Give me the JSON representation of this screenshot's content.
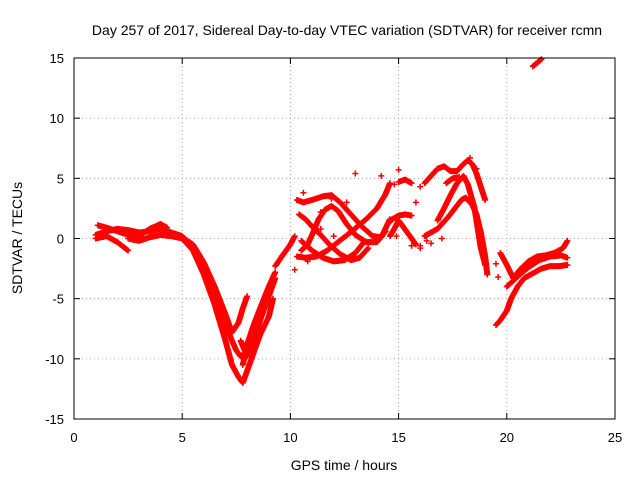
{
  "chart_data": {
    "type": "scatter",
    "title": "Day 257 of 2017, Sidereal Day-to-day VTEC variation (SDTVAR) for receiver rcmn",
    "xlabel": "GPS time / hours",
    "ylabel": "SDTVAR / TECUs",
    "xlim": [
      0,
      25
    ],
    "ylim": [
      -15,
      15
    ],
    "xticks": [
      0,
      5,
      10,
      15,
      20,
      25
    ],
    "yticks": [
      -15,
      -10,
      -5,
      0,
      5,
      10,
      15
    ],
    "grid": true,
    "marker": "+",
    "series_color": "#ff0000",
    "tracks": [
      [
        [
          1.0,
          0.3
        ],
        [
          1.5,
          0.6
        ],
        [
          2.0,
          0.8
        ],
        [
          2.5,
          0.7
        ],
        [
          3.0,
          0.5
        ],
        [
          3.5,
          0.6
        ],
        [
          4.0,
          0.8
        ],
        [
          4.5,
          0.5
        ],
        [
          5.0,
          0.2
        ],
        [
          5.5,
          -0.8
        ],
        [
          6.0,
          -2.5
        ],
        [
          6.5,
          -4.8
        ],
        [
          7.0,
          -7.2
        ],
        [
          7.3,
          -8.5
        ],
        [
          7.5,
          -9.3
        ],
        [
          7.7,
          -9.8
        ],
        [
          7.9,
          -9.5
        ]
      ],
      [
        [
          1.0,
          0.0
        ],
        [
          1.5,
          0.2
        ],
        [
          2.0,
          -0.3
        ],
        [
          2.5,
          -1.0
        ]
      ],
      [
        [
          1.1,
          1.1
        ],
        [
          1.5,
          0.9
        ],
        [
          2.0,
          0.6
        ],
        [
          2.5,
          0.3
        ],
        [
          3.0,
          0.2
        ],
        [
          3.5,
          0.8
        ],
        [
          4.0,
          1.2
        ],
        [
          4.3,
          0.9
        ]
      ],
      [
        [
          2.5,
          0.0
        ],
        [
          3.0,
          -0.2
        ],
        [
          3.5,
          0.1
        ],
        [
          4.0,
          0.3
        ],
        [
          4.5,
          0.2
        ],
        [
          5.0,
          0.0
        ],
        [
          5.5,
          -1.0
        ],
        [
          6.0,
          -3.0
        ],
        [
          6.5,
          -5.5
        ],
        [
          7.0,
          -8.5
        ],
        [
          7.3,
          -10.5
        ],
        [
          7.6,
          -11.5
        ],
        [
          7.8,
          -12.0
        ],
        [
          8.0,
          -11.0
        ],
        [
          8.3,
          -9.5
        ],
        [
          8.6,
          -8.0
        ],
        [
          9.0,
          -6.5
        ],
        [
          9.2,
          -5.0
        ]
      ],
      [
        [
          4.5,
          0.4
        ],
        [
          5.0,
          0.1
        ],
        [
          5.5,
          -0.5
        ],
        [
          6.0,
          -2.0
        ],
        [
          6.5,
          -4.0
        ],
        [
          7.0,
          -6.3
        ],
        [
          7.3,
          -7.8
        ],
        [
          7.6,
          -7.0
        ],
        [
          7.8,
          -5.8
        ],
        [
          8.0,
          -4.8
        ]
      ],
      [
        [
          7.8,
          -10.5
        ],
        [
          8.0,
          -8.8
        ],
        [
          8.3,
          -7.2
        ],
        [
          8.6,
          -5.8
        ],
        [
          9.0,
          -4.0
        ],
        [
          9.3,
          -2.8
        ]
      ],
      [
        [
          7.7,
          -8.5
        ],
        [
          8.0,
          -9.8
        ],
        [
          8.3,
          -8.5
        ],
        [
          8.6,
          -6.8
        ],
        [
          9.0,
          -4.8
        ],
        [
          9.3,
          -3.3
        ]
      ],
      [
        [
          9.3,
          -2.3
        ],
        [
          9.6,
          -1.5
        ],
        [
          9.8,
          -1.0
        ],
        [
          10.0,
          -0.5
        ],
        [
          10.2,
          0.2
        ]
      ],
      [
        [
          10.5,
          -1.0
        ],
        [
          10.8,
          -0.5
        ],
        [
          11.0,
          0.3
        ],
        [
          11.3,
          1.6
        ],
        [
          11.6,
          2.4
        ],
        [
          11.9,
          2.7
        ],
        [
          12.2,
          2.3
        ],
        [
          12.6,
          1.2
        ],
        [
          13.0,
          0.3
        ],
        [
          13.5,
          -0.3
        ],
        [
          14.0,
          -0.3
        ],
        [
          14.4,
          0.6
        ]
      ],
      [
        [
          10.3,
          -1.5
        ],
        [
          10.7,
          -1.6
        ],
        [
          11.2,
          -1.5
        ],
        [
          11.7,
          -1.0
        ],
        [
          12.2,
          -0.3
        ],
        [
          12.7,
          0.4
        ],
        [
          13.1,
          1.0
        ],
        [
          13.5,
          1.6
        ],
        [
          14.0,
          2.5
        ],
        [
          14.4,
          3.7
        ],
        [
          14.6,
          4.6
        ]
      ],
      [
        [
          10.4,
          2.0
        ],
        [
          10.7,
          1.6
        ],
        [
          11.0,
          1.0
        ],
        [
          11.4,
          0.3
        ],
        [
          11.8,
          -0.5
        ],
        [
          12.3,
          -1.3
        ],
        [
          12.8,
          -1.8
        ],
        [
          13.2,
          -1.6
        ],
        [
          13.6,
          -0.8
        ]
      ],
      [
        [
          10.3,
          3.2
        ],
        [
          10.6,
          3.0
        ],
        [
          11.0,
          3.2
        ],
        [
          11.5,
          3.5
        ],
        [
          11.9,
          3.6
        ],
        [
          12.3,
          3.0
        ],
        [
          12.8,
          2.0
        ],
        [
          13.3,
          1.0
        ],
        [
          13.8,
          0.2
        ],
        [
          14.2,
          0.1
        ],
        [
          14.6,
          1.6
        ]
      ],
      [
        [
          10.5,
          -0.2
        ],
        [
          11.0,
          -1.0
        ],
        [
          11.5,
          -1.6
        ],
        [
          12.0,
          -1.9
        ],
        [
          12.5,
          -1.8
        ],
        [
          13.0,
          -1.2
        ],
        [
          13.4,
          -0.3
        ]
      ],
      [
        [
          14.5,
          1.2
        ],
        [
          14.7,
          1.6
        ],
        [
          15.0,
          1.9
        ],
        [
          15.3,
          2.0
        ],
        [
          15.6,
          1.9
        ]
      ],
      [
        [
          14.6,
          0.2
        ],
        [
          14.8,
          0.8
        ],
        [
          15.0,
          1.5
        ],
        [
          15.2,
          1.0
        ],
        [
          15.4,
          0.5
        ],
        [
          15.6,
          0.0
        ],
        [
          15.8,
          -0.5
        ]
      ],
      [
        [
          15.0,
          4.7
        ],
        [
          15.3,
          4.9
        ],
        [
          15.6,
          4.6
        ]
      ],
      [
        [
          16.2,
          0.2
        ],
        [
          16.5,
          0.5
        ],
        [
          16.8,
          0.8
        ],
        [
          17.0,
          1.2
        ],
        [
          17.3,
          1.8
        ],
        [
          17.6,
          2.5
        ],
        [
          17.9,
          3.2
        ],
        [
          18.1,
          3.4
        ],
        [
          18.4,
          2.8
        ],
        [
          18.6,
          2.0
        ],
        [
          18.8,
          0.5
        ],
        [
          19.0,
          -1.5
        ],
        [
          19.1,
          -3.0
        ]
      ],
      [
        [
          16.8,
          1.5
        ],
        [
          17.1,
          2.5
        ],
        [
          17.4,
          3.6
        ],
        [
          17.7,
          4.6
        ],
        [
          18.0,
          5.2
        ],
        [
          18.2,
          4.5
        ],
        [
          18.5,
          2.6
        ],
        [
          18.8,
          -0.8
        ],
        [
          19.0,
          -2.2
        ]
      ],
      [
        [
          16.2,
          4.6
        ],
        [
          16.5,
          5.2
        ],
        [
          16.8,
          5.8
        ],
        [
          17.1,
          6.0
        ],
        [
          17.4,
          5.6
        ],
        [
          17.7,
          5.6
        ],
        [
          18.0,
          6.2
        ],
        [
          18.2,
          6.5
        ],
        [
          18.4,
          6.2
        ],
        [
          18.6,
          5.4
        ],
        [
          18.8,
          4.3
        ],
        [
          19.0,
          3.2
        ]
      ],
      [
        [
          17.2,
          4.6
        ],
        [
          17.5,
          5.0
        ],
        [
          17.8,
          5.1
        ]
      ],
      [
        [
          19.5,
          -7.2
        ],
        [
          19.7,
          -6.8
        ],
        [
          20.0,
          -6.0
        ],
        [
          20.2,
          -5.0
        ],
        [
          20.5,
          -4.0
        ],
        [
          20.8,
          -3.3
        ],
        [
          21.2,
          -2.9
        ],
        [
          21.6,
          -2.5
        ],
        [
          22.0,
          -2.3
        ],
        [
          22.4,
          -2.3
        ],
        [
          22.8,
          -2.2
        ]
      ],
      [
        [
          19.7,
          -1.2
        ],
        [
          20.0,
          -2.2
        ],
        [
          20.3,
          -3.3
        ],
        [
          20.6,
          -2.6
        ],
        [
          21.0,
          -1.9
        ],
        [
          21.4,
          -1.5
        ],
        [
          21.8,
          -1.4
        ],
        [
          22.2,
          -1.2
        ],
        [
          22.6,
          -0.8
        ],
        [
          22.8,
          -0.2
        ]
      ],
      [
        [
          20.0,
          -4.0
        ],
        [
          20.3,
          -3.5
        ],
        [
          20.6,
          -3.0
        ],
        [
          21.0,
          -2.4
        ],
        [
          21.5,
          -1.8
        ],
        [
          22.0,
          -1.5
        ],
        [
          22.5,
          -1.4
        ],
        [
          22.8,
          -1.6
        ]
      ],
      [
        [
          21.2,
          14.3
        ],
        [
          21.4,
          14.6
        ],
        [
          21.6,
          14.9
        ]
      ]
    ],
    "points": [
      [
        15.0,
        5.7
      ],
      [
        14.2,
        5.2
      ],
      [
        13.0,
        5.4
      ],
      [
        14.8,
        4.5
      ],
      [
        16.0,
        4.3
      ],
      [
        15.8,
        3.0
      ],
      [
        16.0,
        -0.6
      ],
      [
        16.3,
        -0.2
      ],
      [
        16.5,
        -0.4
      ],
      [
        17.0,
        0.0
      ],
      [
        14.9,
        0.2
      ],
      [
        15.6,
        -0.6
      ],
      [
        16.0,
        -0.8
      ],
      [
        10.6,
        3.8
      ],
      [
        11.9,
        3.3
      ],
      [
        12.6,
        3.0
      ],
      [
        11.4,
        2.2
      ],
      [
        10.2,
        -2.6
      ],
      [
        10.8,
        -1.9
      ],
      [
        11.4,
        0.8
      ],
      [
        12.0,
        0.2
      ],
      [
        18.3,
        6.7
      ],
      [
        18.6,
        5.8
      ],
      [
        19.5,
        -2.1
      ],
      [
        19.6,
        -3.2
      ],
      [
        8.6,
        -7.6
      ]
    ]
  }
}
